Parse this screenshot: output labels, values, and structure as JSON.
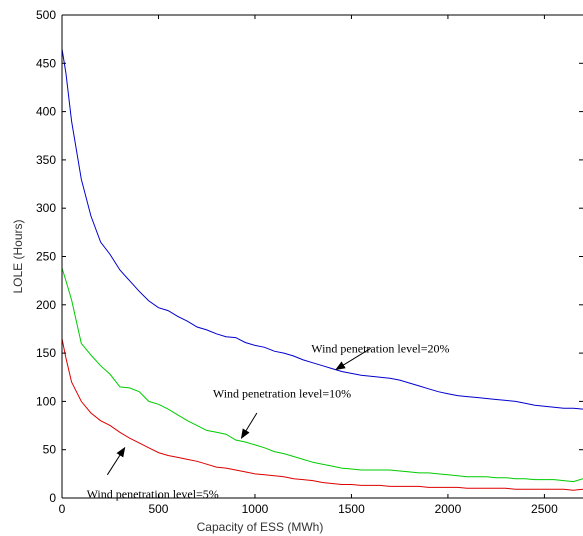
{
  "chart_data": {
    "type": "line",
    "title": "",
    "xlabel": "Capacity of ESS (MWh)",
    "ylabel": "LOLE (Hours)",
    "xlim": [
      0,
      2700
    ],
    "ylim": [
      0,
      500
    ],
    "xticks": [
      0,
      500,
      1000,
      1500,
      2000,
      2500
    ],
    "yticks": [
      0,
      50,
      100,
      150,
      200,
      250,
      300,
      350,
      400,
      450,
      500
    ],
    "grid": false,
    "series": [
      {
        "name": "",
        "color": "#0000cc",
        "x": [
          0,
          20,
          50,
          100,
          150,
          200,
          250,
          300,
          350,
          400,
          450,
          500,
          550,
          600,
          650,
          700,
          750,
          800,
          850,
          900,
          950,
          1000,
          1050,
          1100,
          1150,
          1200,
          1250,
          1300,
          1350,
          1400,
          1450,
          1500,
          1550,
          1600,
          1650,
          1700,
          1750,
          1800,
          1850,
          1900,
          1950,
          2000,
          2050,
          2100,
          2150,
          2200,
          2250,
          2300,
          2350,
          2400,
          2450,
          2500,
          2550,
          2600,
          2650,
          2700
        ],
        "values": [
          465,
          440,
          390,
          330,
          292,
          265,
          252,
          236,
          225,
          214,
          204,
          197,
          194,
          188,
          183,
          177,
          174,
          170,
          167,
          166,
          161,
          158,
          156,
          152,
          150,
          147,
          143,
          140,
          137,
          134,
          131,
          129,
          127,
          126,
          125,
          124,
          122,
          119,
          116,
          113,
          110,
          108,
          106,
          105,
          104,
          103,
          102,
          101,
          100,
          98,
          96,
          95,
          94,
          93,
          93,
          92
        ]
      },
      {
        "name": "",
        "color": "#00cc00",
        "x": [
          0,
          20,
          50,
          100,
          150,
          200,
          250,
          300,
          350,
          400,
          450,
          500,
          550,
          600,
          650,
          700,
          750,
          800,
          850,
          900,
          950,
          1000,
          1050,
          1100,
          1150,
          1200,
          1250,
          1300,
          1350,
          1400,
          1450,
          1500,
          1550,
          1600,
          1650,
          1700,
          1750,
          1800,
          1850,
          1900,
          1950,
          2000,
          2050,
          2100,
          2150,
          2200,
          2250,
          2300,
          2350,
          2400,
          2450,
          2500,
          2550,
          2600,
          2650,
          2700
        ],
        "values": [
          238,
          225,
          205,
          160,
          148,
          137,
          128,
          115,
          114,
          110,
          100,
          97,
          92,
          86,
          80,
          75,
          70,
          68,
          66,
          60,
          58,
          55,
          52,
          48,
          46,
          43,
          40,
          37,
          35,
          33,
          31,
          30,
          29,
          29,
          29,
          29,
          28,
          27,
          26,
          26,
          25,
          24,
          23,
          22,
          22,
          22,
          21,
          21,
          20,
          20,
          19,
          19,
          19,
          18,
          17,
          20
        ]
      },
      {
        "name": "",
        "color": "#dd0000",
        "x": [
          0,
          20,
          50,
          100,
          150,
          200,
          250,
          300,
          350,
          400,
          450,
          500,
          550,
          600,
          650,
          700,
          750,
          800,
          850,
          900,
          950,
          1000,
          1050,
          1100,
          1150,
          1200,
          1250,
          1300,
          1350,
          1400,
          1450,
          1500,
          1550,
          1600,
          1650,
          1700,
          1750,
          1800,
          1850,
          1900,
          1950,
          2000,
          2050,
          2100,
          2150,
          2200,
          2250,
          2300,
          2350,
          2400,
          2450,
          2500,
          2550,
          2600,
          2650,
          2700
        ],
        "values": [
          165,
          145,
          120,
          100,
          88,
          80,
          75,
          68,
          62,
          57,
          52,
          47,
          44,
          42,
          40,
          38,
          35,
          32,
          31,
          29,
          27,
          25,
          24,
          23,
          22,
          20,
          19,
          18,
          16,
          15,
          14,
          14,
          13,
          13,
          13,
          12,
          12,
          12,
          12,
          11,
          11,
          11,
          11,
          10,
          10,
          10,
          10,
          10,
          9,
          9,
          9,
          9,
          9,
          9,
          8,
          9
        ]
      }
    ],
    "annotations": [
      {
        "text": "Wind penetration level=20%",
        "text_x": 1650,
        "text_y": 155,
        "arrow_from": [
          1600,
          155
        ],
        "arrow_to": [
          1420,
          133
        ]
      },
      {
        "text": "Wind penetration level=10%",
        "text_x": 1140,
        "text_y": 108,
        "arrow_from": [
          1010,
          88
        ],
        "arrow_to": [
          930,
          62
        ]
      },
      {
        "text": "Wind penetration level=5%",
        "text_x": 470,
        "text_y": 4,
        "arrow_from": [
          235,
          24
        ],
        "arrow_to": [
          325,
          52
        ]
      }
    ]
  }
}
